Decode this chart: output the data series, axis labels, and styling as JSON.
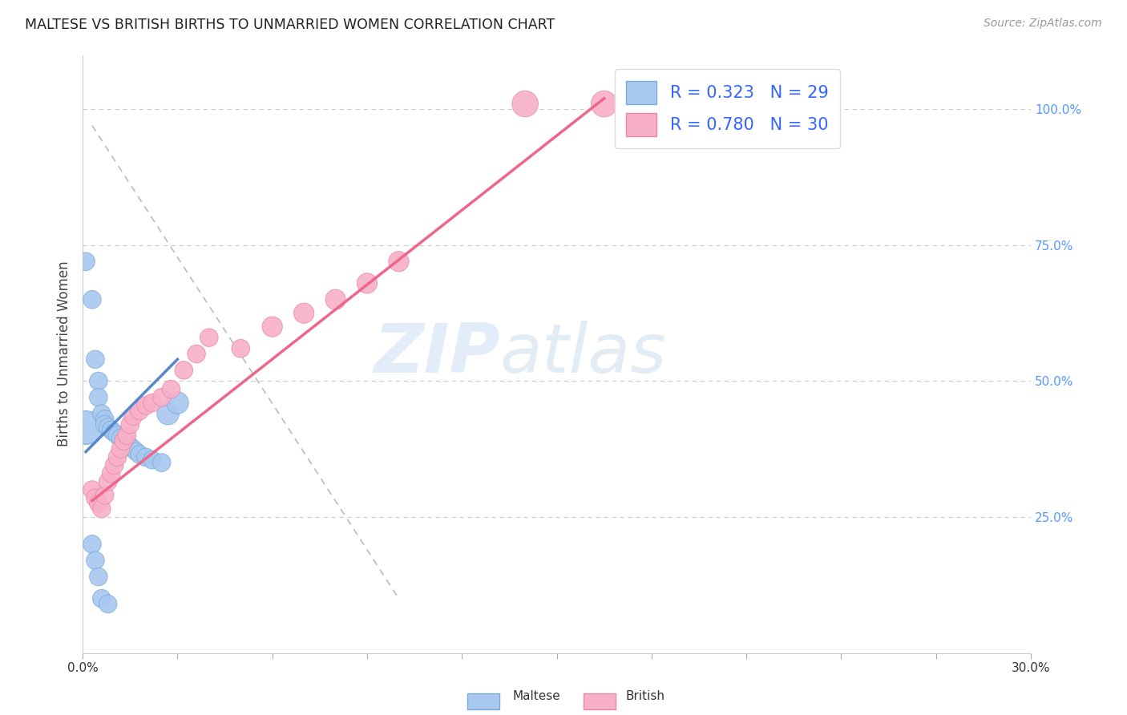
{
  "title": "MALTESE VS BRITISH BIRTHS TO UNMARRIED WOMEN CORRELATION CHART",
  "source": "Source: ZipAtlas.com",
  "ylabel": "Births to Unmarried Women",
  "yaxis_labels": [
    "25.0%",
    "50.0%",
    "75.0%",
    "100.0%"
  ],
  "legend_maltese": "R = 0.323   N = 29",
  "legend_british": "R = 0.780   N = 30",
  "legend_label_maltese": "Maltese",
  "legend_label_british": "British",
  "maltese_color": "#a8c8f0",
  "british_color": "#f8b0c8",
  "maltese_line_color": "#5588cc",
  "british_line_color": "#ee6688",
  "xlim": [
    0.0,
    0.3
  ],
  "ylim": [
    0.0,
    1.1
  ],
  "maltese_scatter": [
    [
      0.001,
      0.72
    ],
    [
      0.003,
      0.65
    ],
    [
      0.004,
      0.54
    ],
    [
      0.005,
      0.5
    ],
    [
      0.005,
      0.47
    ],
    [
      0.006,
      0.44
    ],
    [
      0.007,
      0.43
    ],
    [
      0.007,
      0.42
    ],
    [
      0.008,
      0.415
    ],
    [
      0.009,
      0.41
    ],
    [
      0.01,
      0.405
    ],
    [
      0.011,
      0.4
    ],
    [
      0.012,
      0.395
    ],
    [
      0.013,
      0.39
    ],
    [
      0.014,
      0.385
    ],
    [
      0.015,
      0.38
    ],
    [
      0.016,
      0.375
    ],
    [
      0.017,
      0.37
    ],
    [
      0.018,
      0.365
    ],
    [
      0.02,
      0.36
    ],
    [
      0.022,
      0.355
    ],
    [
      0.025,
      0.35
    ],
    [
      0.027,
      0.44
    ],
    [
      0.03,
      0.46
    ],
    [
      0.003,
      0.2
    ],
    [
      0.004,
      0.17
    ],
    [
      0.005,
      0.14
    ],
    [
      0.006,
      0.1
    ],
    [
      0.008,
      0.09
    ]
  ],
  "british_scatter": [
    [
      0.003,
      0.3
    ],
    [
      0.004,
      0.285
    ],
    [
      0.005,
      0.275
    ],
    [
      0.006,
      0.265
    ],
    [
      0.007,
      0.29
    ],
    [
      0.008,
      0.315
    ],
    [
      0.009,
      0.33
    ],
    [
      0.01,
      0.345
    ],
    [
      0.011,
      0.36
    ],
    [
      0.012,
      0.375
    ],
    [
      0.013,
      0.39
    ],
    [
      0.014,
      0.4
    ],
    [
      0.015,
      0.42
    ],
    [
      0.016,
      0.435
    ],
    [
      0.018,
      0.445
    ],
    [
      0.02,
      0.455
    ],
    [
      0.022,
      0.46
    ],
    [
      0.025,
      0.47
    ],
    [
      0.028,
      0.485
    ],
    [
      0.032,
      0.52
    ],
    [
      0.036,
      0.55
    ],
    [
      0.04,
      0.58
    ],
    [
      0.05,
      0.56
    ],
    [
      0.06,
      0.6
    ],
    [
      0.07,
      0.625
    ],
    [
      0.08,
      0.65
    ],
    [
      0.09,
      0.68
    ],
    [
      0.1,
      0.72
    ],
    [
      0.14,
      1.01
    ],
    [
      0.165,
      1.01
    ]
  ],
  "maltese_line_pts": [
    [
      0.001,
      0.37
    ],
    [
      0.03,
      0.54
    ]
  ],
  "british_line_pts": [
    [
      0.003,
      0.28
    ],
    [
      0.165,
      1.02
    ]
  ],
  "diag_line_pts": [
    [
      0.003,
      0.97
    ],
    [
      0.1,
      0.1
    ]
  ],
  "maltese_sizes": [
    12,
    12,
    12,
    12,
    12,
    12,
    12,
    12,
    12,
    12,
    12,
    12,
    12,
    12,
    12,
    12,
    12,
    12,
    12,
    12,
    12,
    12,
    18,
    18,
    12,
    12,
    12,
    12,
    12
  ],
  "british_sizes": [
    12,
    12,
    12,
    12,
    12,
    12,
    12,
    12,
    12,
    12,
    12,
    12,
    12,
    12,
    12,
    12,
    12,
    12,
    12,
    12,
    12,
    12,
    12,
    15,
    15,
    15,
    15,
    15,
    25,
    25
  ],
  "big_maltese_point": [
    0.001,
    0.415
  ],
  "big_maltese_size": 900
}
